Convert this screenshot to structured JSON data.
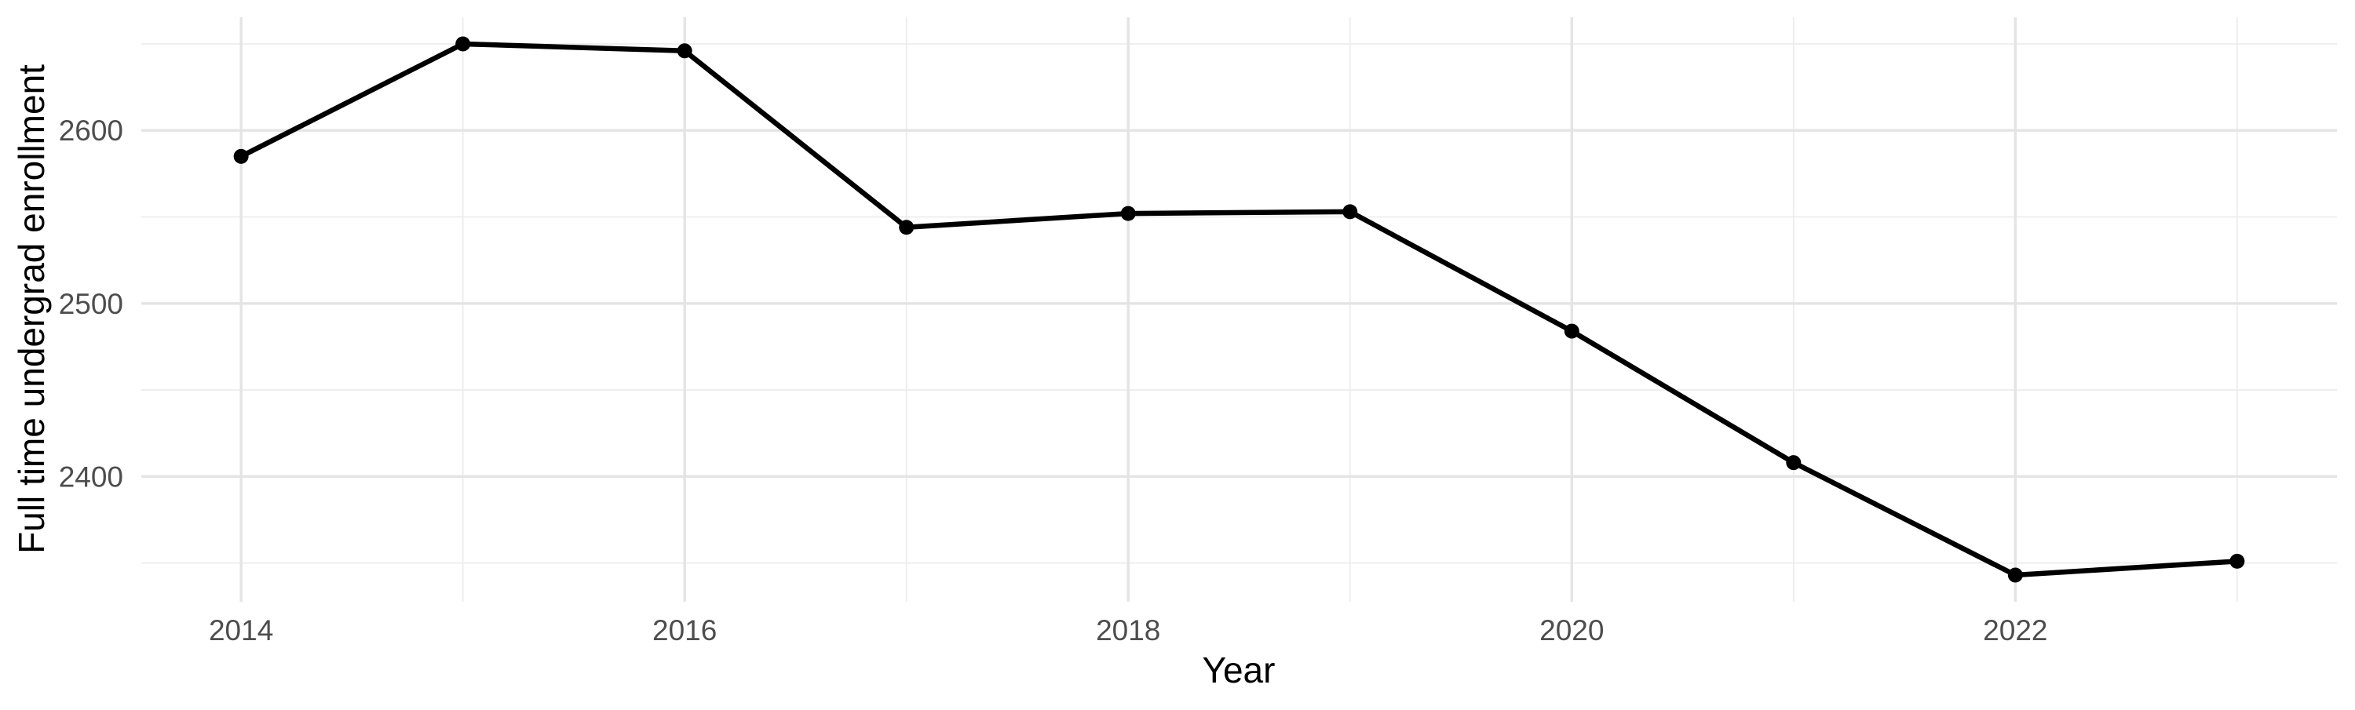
{
  "chart_data": {
    "type": "line",
    "title": "",
    "xlabel": "Year",
    "ylabel": "Full time undergrad enrollment",
    "x": [
      2014,
      2015,
      2016,
      2017,
      2018,
      2019,
      2020,
      2021,
      2022,
      2023
    ],
    "series": [
      {
        "name": "Full time undergrad enrollment",
        "values": [
          2585,
          2650,
          2646,
          2544,
          2552,
          2553,
          2484,
          2408,
          2343,
          2351
        ]
      }
    ],
    "x_tick_labels": [
      "2014",
      "2016",
      "2018",
      "2020",
      "2022"
    ],
    "x_major_ticks": [
      2014,
      2016,
      2018,
      2020,
      2022
    ],
    "x_minor_ticks": [
      2015,
      2017,
      2019,
      2021,
      2023
    ],
    "y_tick_labels": [
      "2400",
      "2500",
      "2600"
    ],
    "y_major_ticks": [
      2400,
      2500,
      2600
    ],
    "y_minor_ticks": [
      2350,
      2450,
      2550,
      2650
    ],
    "xlim": [
      2013.55,
      2023.45
    ],
    "ylim": [
      2327.6,
      2665.4
    ],
    "grid": "on",
    "legend_position": "none",
    "colors": {
      "line": "#000000",
      "point": "#000000",
      "grid_major": "#e4e4e4",
      "grid_minor": "#ededed",
      "tick_label": "#4d4d4d",
      "axis_title": "#000000",
      "background": "#ffffff"
    }
  }
}
